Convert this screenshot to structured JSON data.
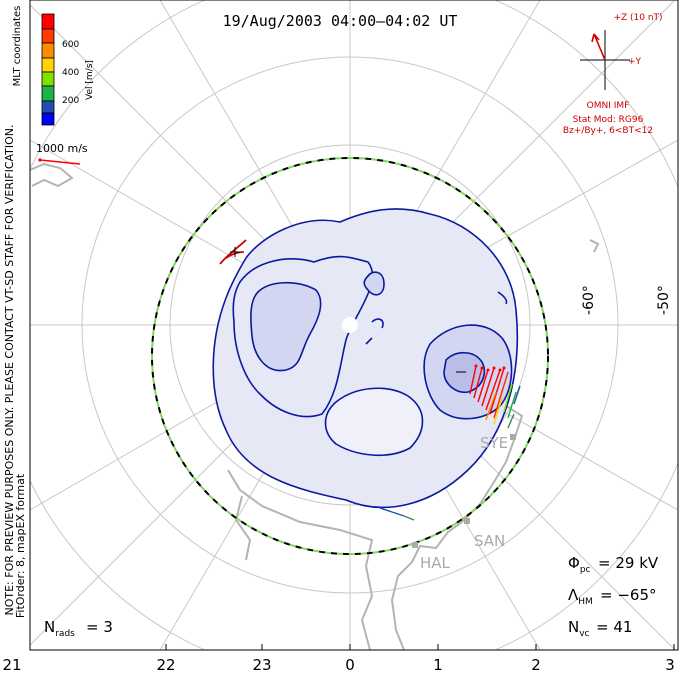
{
  "title": "19/Aug/2003 04:00–04:02 UT",
  "coords_label": "MLT coordinates",
  "colorbar": {
    "label": "Vel [m/s]",
    "ticks": [
      "600",
      "400",
      "200"
    ],
    "colors": [
      "#ff0000",
      "#ff8c00",
      "#ffd700",
      "#7fe000",
      "#1db24a",
      "#2e8b57",
      "#1f4fb0",
      "#0000ff"
    ]
  },
  "scale_vector_label": "1000 m/s",
  "notice": "NOTE: FOR PREVIEW PURPOSES ONLY. PLEASE CONTACT VT-SD STAFF FOR VERIFICATION.",
  "fit_order": "FitOrder: 8, mapEX format",
  "imf": {
    "z_label": "+Z (10 nT)",
    "y_label": "+Y",
    "source": "OMNI IMF",
    "model": "Stat Mod: RG96",
    "bin": "Bz+/By+, 6<BT<12"
  },
  "latitude_labels": [
    "-60°",
    "-50°"
  ],
  "mlt_labels": [
    "21",
    "22",
    "23",
    "0",
    "1",
    "2",
    "3"
  ],
  "stations": [
    "SYE",
    "SAN",
    "HAL"
  ],
  "stats": {
    "phi_pc": "= 29 kV",
    "lambda_hm": "= −65°",
    "n_vc": "= 41",
    "n_rads": "= 3"
  },
  "colors": {
    "contour": "#0a1a9e",
    "fill_light": "#e6e8f6",
    "fill_mid": "#d3d6f0",
    "fill_dark": "#b9bde8",
    "hm_boundary_dash1": "#000000",
    "hm_boundary_dash2": "#7ed957",
    "negative_contour": "#cc0000",
    "imf_vector": "#cc0000",
    "grid": "#c8c8c8",
    "coast": "#b4b4b4",
    "station": "#aaaaaa"
  }
}
